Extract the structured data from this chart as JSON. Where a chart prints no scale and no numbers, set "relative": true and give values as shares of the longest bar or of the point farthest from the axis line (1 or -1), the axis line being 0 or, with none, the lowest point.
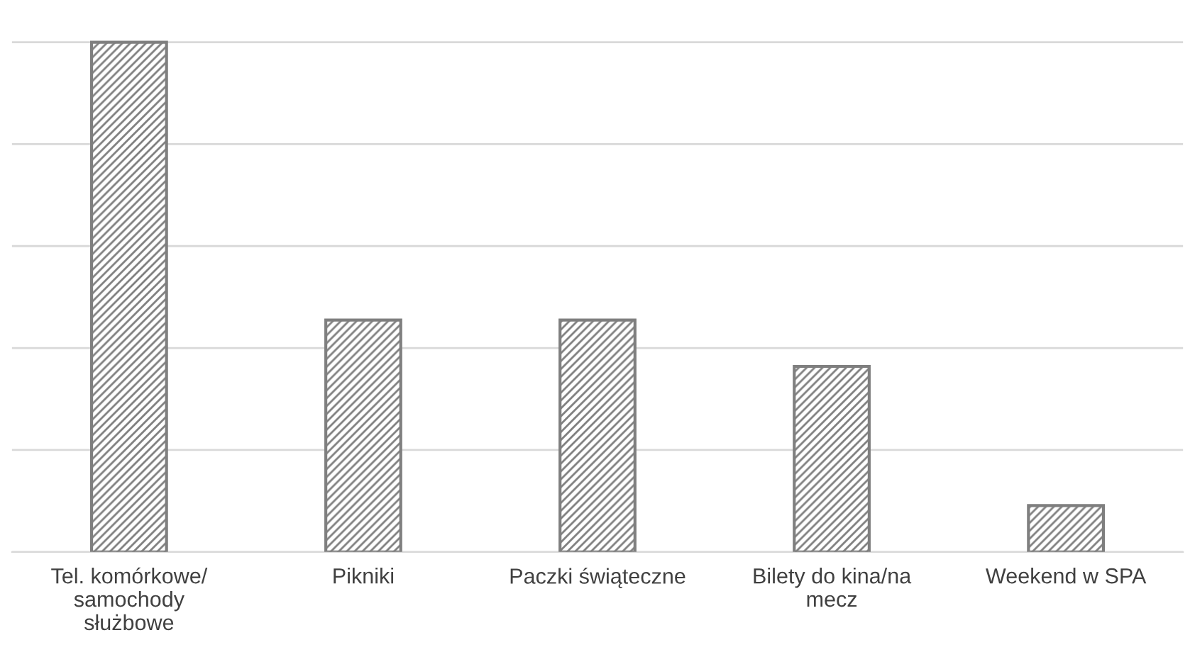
{
  "chart_data": {
    "type": "bar",
    "relative": true,
    "categories": [
      "Tel. komórkowe/\nsamochody\nsłużbowe",
      "Pikniki",
      "Paczki świąteczne",
      "Bilety do kina/na\nmecz",
      "Weekend w SPA"
    ],
    "values": [
      1,
      0.455,
      0.455,
      0.364,
      0.091
    ],
    "color": "#7f7f7f",
    "grid": "y"
  }
}
